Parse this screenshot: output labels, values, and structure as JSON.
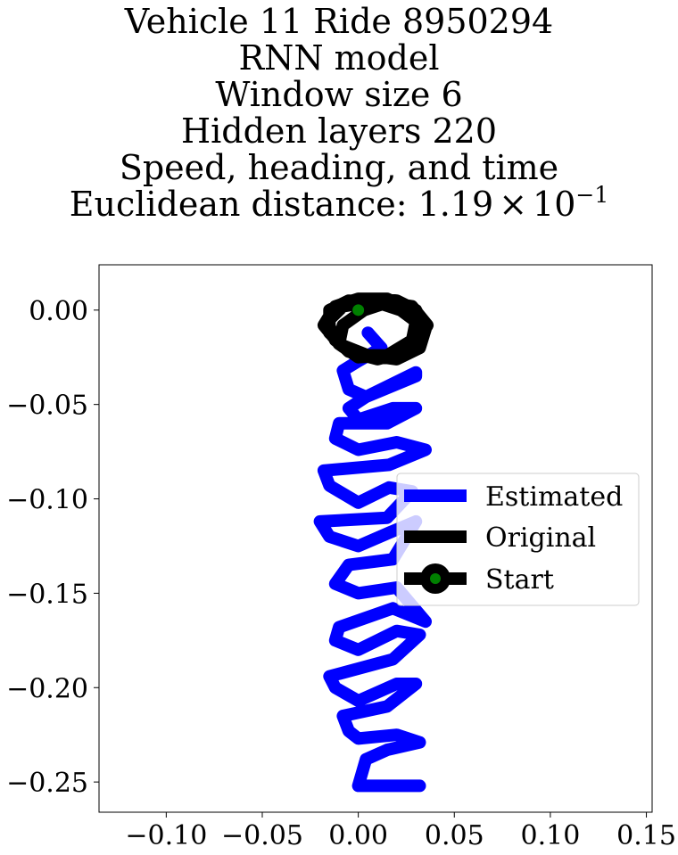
{
  "chart_data": {
    "type": "line",
    "title_lines": [
      "Vehicle 11 Ride 8950294",
      "RNN model",
      "Window size 6",
      "Hidden layers 220",
      "Speed, heading, and time"
    ],
    "metric_label": "Euclidean distance: ",
    "metric_mantissa": "1.19",
    "metric_times": "×",
    "metric_base": "10",
    "metric_exponent": "−1",
    "xlabel": "",
    "ylabel": "",
    "xlim": [
      -0.135,
      0.153
    ],
    "ylim": [
      -0.266,
      0.024
    ],
    "xticks": [
      -0.1,
      -0.05,
      0.0,
      0.05,
      0.1,
      0.15
    ],
    "xtick_labels": [
      "−0.10",
      "−0.05",
      "0.00",
      "0.05",
      "0.10",
      "0.15"
    ],
    "yticks": [
      0.0,
      -0.05,
      -0.1,
      -0.15,
      -0.2,
      -0.25
    ],
    "ytick_labels": [
      "0.00",
      "−0.05",
      "−0.10",
      "−0.15",
      "−0.20",
      "−0.25"
    ],
    "grid": false,
    "legend_position": "center-right",
    "series": [
      {
        "name": "Estimated",
        "color": "#0000ff",
        "x": [
          0.005,
          0.012,
          0.0,
          -0.008,
          -0.005,
          0.004,
          0.03,
          0.03,
          0.004,
          -0.005,
          0.0,
          0.018,
          0.03,
          0.015,
          -0.01,
          -0.012,
          0.0,
          0.02,
          0.035,
          0.016,
          -0.018,
          -0.015,
          0.0,
          0.016,
          0.028,
          0.015,
          -0.02,
          -0.015,
          0.0,
          0.016,
          0.03,
          0.018,
          -0.005,
          -0.012,
          0.0,
          0.02,
          0.035,
          0.018,
          -0.01,
          -0.012,
          0.0,
          0.02,
          0.032,
          0.018,
          -0.015,
          -0.012,
          0.0,
          0.02,
          0.03,
          0.015,
          -0.008,
          -0.005,
          0.0,
          0.02,
          0.032,
          0.015,
          0.004,
          0.0,
          0.012,
          0.032
        ],
        "y": [
          -0.012,
          -0.02,
          -0.027,
          -0.032,
          -0.042,
          -0.046,
          -0.035,
          -0.033,
          -0.046,
          -0.052,
          -0.058,
          -0.052,
          -0.052,
          -0.06,
          -0.06,
          -0.068,
          -0.074,
          -0.07,
          -0.074,
          -0.082,
          -0.085,
          -0.093,
          -0.102,
          -0.094,
          -0.096,
          -0.11,
          -0.112,
          -0.12,
          -0.125,
          -0.118,
          -0.112,
          -0.132,
          -0.135,
          -0.145,
          -0.15,
          -0.147,
          -0.165,
          -0.158,
          -0.168,
          -0.175,
          -0.18,
          -0.17,
          -0.172,
          -0.185,
          -0.194,
          -0.2,
          -0.207,
          -0.198,
          -0.198,
          -0.21,
          -0.215,
          -0.223,
          -0.227,
          -0.225,
          -0.229,
          -0.233,
          -0.238,
          -0.252,
          -0.252,
          -0.252
        ]
      },
      {
        "name": "Original",
        "color": "#000000",
        "x": [
          0.0,
          0.01,
          0.02,
          0.03,
          0.035,
          0.032,
          0.02,
          0.005,
          -0.01,
          -0.018,
          -0.012,
          0.0,
          0.015,
          0.028,
          0.033,
          0.025,
          0.01,
          -0.005,
          -0.015,
          -0.015,
          -0.005,
          0.01,
          0.022,
          0.03,
          0.028,
          0.015,
          0.0,
          -0.01,
          -0.008,
          0.003,
          0.015,
          0.028,
          0.036,
          0.03,
          0.015,
          0.0,
          -0.012,
          -0.016,
          -0.008,
          0.004
        ],
        "y": [
          0.005,
          0.006,
          0.005,
          0.0,
          -0.01,
          -0.02,
          -0.026,
          -0.024,
          -0.018,
          -0.008,
          0.002,
          0.006,
          0.006,
          0.0,
          -0.01,
          -0.022,
          -0.026,
          -0.022,
          -0.012,
          0.0,
          0.005,
          0.004,
          0.0,
          -0.006,
          -0.016,
          -0.024,
          -0.025,
          -0.018,
          -0.008,
          0.0,
          0.004,
          0.002,
          -0.008,
          -0.018,
          -0.024,
          -0.024,
          -0.016,
          -0.006,
          0.002,
          0.004
        ]
      }
    ],
    "start_point": {
      "name": "Start",
      "x": 0.0,
      "y": 0.0,
      "color": "#008000",
      "edge_color": "#000000"
    },
    "legend_labels": [
      "Estimated",
      "Original",
      "Start"
    ]
  }
}
